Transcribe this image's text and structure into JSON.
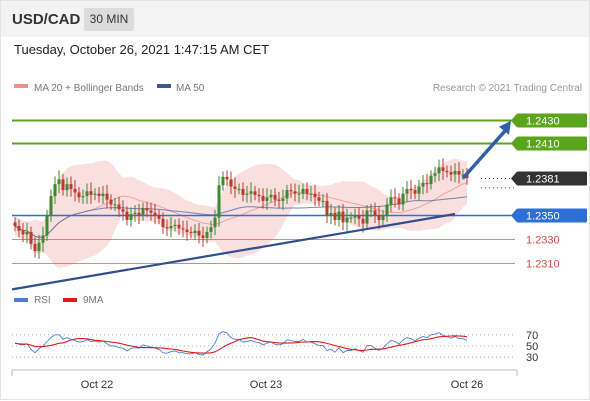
{
  "header": {
    "symbol": "USD/CAD",
    "interval": "30 MIN",
    "datetime": "Tuesday, October 26, 2021 1:47:15 AM CET"
  },
  "colors": {
    "resistance": "#5aa51b",
    "support": "#e04848",
    "pivot": "#2e6fd6",
    "current": "#333333",
    "trendline": "#2f4f8f",
    "arrow": "#2f5fa5",
    "candle_up": "#3c8a2e",
    "candle_down": "#c0392b",
    "bollinger": "#f5c4c4",
    "ma20": "#f28e8e",
    "ma50": "#3b5a98",
    "rsi": "#4a7fd4",
    "rsi_ma": "#e01a1a"
  },
  "chart_data": [
    {
      "type": "candlestick",
      "title": "",
      "legend": [
        {
          "name": "MA 20 + Bollinger Bands",
          "color": "#f28e8e"
        },
        {
          "name": "MA 50",
          "color": "#3b5a98"
        }
      ],
      "credit": "Research © 2021 Trading Central",
      "ylim": [
        1.2295,
        1.2448
      ],
      "x_ticks": [
        "Oct 22",
        "Oct 23",
        "Oct 26"
      ],
      "levels": [
        {
          "value": 1.243,
          "label": "1.2430",
          "kind": "resistance"
        },
        {
          "value": 1.241,
          "label": "1.2410",
          "kind": "resistance"
        },
        {
          "value": 1.2381,
          "label": "1.2381",
          "kind": "current"
        },
        {
          "value": 1.235,
          "label": "1.2350",
          "kind": "pivot"
        },
        {
          "value": 1.233,
          "label": "1.2330",
          "kind": "support"
        },
        {
          "value": 1.231,
          "label": "1.2310",
          "kind": "support"
        }
      ],
      "trendline": [
        [
          0,
          1.2288
        ],
        [
          110,
          1.2351
        ]
      ],
      "arrow": [
        [
          112,
          1.2381
        ],
        [
          124,
          1.2429
        ]
      ],
      "closes": [
        1.2341,
        1.2337,
        1.2334,
        1.2336,
        1.2326,
        1.232,
        1.2327,
        1.2333,
        1.235,
        1.2366,
        1.2376,
        1.238,
        1.2371,
        1.2376,
        1.2372,
        1.2369,
        1.2365,
        1.2366,
        1.237,
        1.2367,
        1.2368,
        1.2366,
        1.2368,
        1.2363,
        1.2359,
        1.2359,
        1.2355,
        1.2353,
        1.2346,
        1.2351,
        1.2352,
        1.235,
        1.2356,
        1.2354,
        1.2352,
        1.235,
        1.2347,
        1.234,
        1.2339,
        1.2341,
        1.2342,
        1.2339,
        1.2338,
        1.2336,
        1.2335,
        1.2337,
        1.2333,
        1.2331,
        1.2336,
        1.234,
        1.2348,
        1.2375,
        1.2382,
        1.238,
        1.2374,
        1.2372,
        1.2372,
        1.2367,
        1.2368,
        1.237,
        1.2367,
        1.2366,
        1.2362,
        1.2365,
        1.2367,
        1.2363,
        1.2362,
        1.2364,
        1.2371,
        1.237,
        1.2368,
        1.2368,
        1.2372,
        1.2368,
        1.2368,
        1.2365,
        1.2362,
        1.2362,
        1.235,
        1.2352,
        1.2346,
        1.2353,
        1.2344,
        1.2348,
        1.2348,
        1.235,
        1.2347,
        1.2343,
        1.2354,
        1.2354,
        1.235,
        1.2346,
        1.235,
        1.2359,
        1.2365,
        1.2364,
        1.2359,
        1.2368,
        1.2372,
        1.2371,
        1.2368,
        1.2374,
        1.2377,
        1.2376,
        1.2383,
        1.2385,
        1.239,
        1.2387,
        1.2386,
        1.2384,
        1.2387,
        1.2384,
        1.2384,
        1.2381
      ],
      "rsi": [
        55,
        53,
        52,
        54,
        44,
        38,
        45,
        50,
        58,
        65,
        70,
        70,
        62,
        65,
        62,
        60,
        57,
        58,
        61,
        58,
        59,
        57,
        59,
        54,
        50,
        50,
        47,
        46,
        41,
        46,
        47,
        46,
        52,
        50,
        48,
        46,
        44,
        38,
        37,
        40,
        41,
        38,
        38,
        36,
        36,
        38,
        35,
        34,
        40,
        45,
        55,
        72,
        76,
        73,
        65,
        62,
        62,
        57,
        58,
        60,
        57,
        56,
        52,
        55,
        57,
        53,
        52,
        54,
        61,
        60,
        58,
        58,
        62,
        57,
        57,
        54,
        51,
        51,
        42,
        44,
        39,
        47,
        38,
        42,
        42,
        45,
        42,
        39,
        51,
        51,
        46,
        42,
        46,
        54,
        60,
        58,
        53,
        61,
        65,
        63,
        59,
        64,
        67,
        65,
        70,
        71,
        74,
        69,
        67,
        64,
        67,
        63,
        63,
        60
      ],
      "rsi_levels": [
        70,
        50,
        30
      ]
    }
  ]
}
